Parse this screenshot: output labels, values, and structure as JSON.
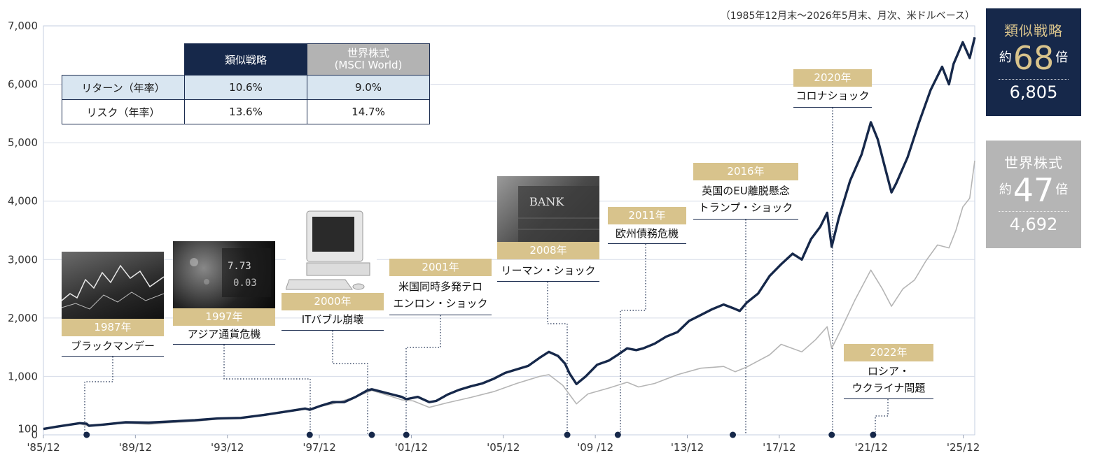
{
  "note": "（1985年12月末〜2026年5月末、月次、米ドルベース）",
  "summary_table": {
    "header": [
      "類似戦略",
      "世界株式",
      "(MSCI World)"
    ],
    "rows": [
      {
        "label": "リターン（年率）",
        "strategy": "10.6%",
        "world": "9.0%"
      },
      {
        "label": "リスク（年率）",
        "strategy": "13.6%",
        "world": "14.7%"
      }
    ]
  },
  "result_boxes": {
    "strategy": {
      "name": "類似戦略",
      "prefix": "約",
      "multiple": "68",
      "suffix": "倍",
      "value": "6,805",
      "color": "#16284a"
    },
    "world": {
      "name": "世界株式",
      "prefix": "約",
      "multiple": "47",
      "suffix": "倍",
      "value": "4,692",
      "color": "#b5b5b5"
    }
  },
  "events": [
    {
      "year": "1987年",
      "lines": [
        "ブラックマンデー"
      ]
    },
    {
      "year": "1997年",
      "lines": [
        "アジア通貨危機"
      ]
    },
    {
      "year": "2000年",
      "lines": [
        "ITバブル崩壊"
      ]
    },
    {
      "year": "2001年",
      "lines": [
        "米国同時多発テロ",
        "エンロン・ショック"
      ]
    },
    {
      "year": "2008年",
      "lines": [
        "リーマン・ショック"
      ]
    },
    {
      "year": "2011年",
      "lines": [
        "欧州債務危機"
      ]
    },
    {
      "year": "2016年",
      "lines": [
        "英国のEU離脱懸念",
        "トランプ・ショック"
      ]
    },
    {
      "year": "2020年",
      "lines": [
        "コロナショック"
      ]
    },
    {
      "year": "2022年",
      "lines": [
        "ロシア・",
        "ウクライナ問題"
      ]
    }
  ],
  "photos": [
    "stock-chart-photo",
    "market-board-photo",
    "retro-computer-photo",
    "bank-building-photo"
  ],
  "photo_text": "BANK",
  "chart_data": {
    "type": "line",
    "x_ticks": [
      "'85/12",
      "'89/12",
      "'93/12",
      "'97/12",
      "'01/12",
      "'05/12",
      "'09 /12",
      "'13/12",
      "'17/12",
      "'21/12",
      "'25/12"
    ],
    "y_ticks": [
      "0",
      "100",
      "1,000",
      "2,000",
      "3,000",
      "4,000",
      "5,000",
      "6,000",
      "7,000"
    ],
    "ylim": [
      0,
      7000
    ],
    "xlim": [
      1985.92,
      2026.42
    ],
    "grid": "horizontal",
    "event_markers": [
      1987.8,
      1997.5,
      2000.2,
      2001.7,
      2008.7,
      2010.9,
      2015.9,
      2020.2,
      2022.0
    ],
    "series": [
      {
        "name": "類似戦略",
        "color": "#16284a",
        "points": [
          [
            1985.92,
            100
          ],
          [
            1986.5,
            140
          ],
          [
            1987.5,
            200
          ],
          [
            1987.8,
            190
          ],
          [
            1987.9,
            155
          ],
          [
            1988.5,
            175
          ],
          [
            1989.5,
            215
          ],
          [
            1990.5,
            210
          ],
          [
            1991.5,
            230
          ],
          [
            1992.5,
            250
          ],
          [
            1993.5,
            280
          ],
          [
            1994.5,
            290
          ],
          [
            1995.5,
            340
          ],
          [
            1996.5,
            400
          ],
          [
            1997.3,
            450
          ],
          [
            1997.5,
            430
          ],
          [
            1998.0,
            500
          ],
          [
            1998.5,
            560
          ],
          [
            1999.0,
            560
          ],
          [
            1999.5,
            650
          ],
          [
            2000.0,
            760
          ],
          [
            2000.2,
            780
          ],
          [
            2000.6,
            740
          ],
          [
            2001.0,
            700
          ],
          [
            2001.5,
            650
          ],
          [
            2001.7,
            610
          ],
          [
            2002.2,
            650
          ],
          [
            2002.7,
            560
          ],
          [
            2003.0,
            580
          ],
          [
            2003.5,
            690
          ],
          [
            2004.0,
            770
          ],
          [
            2004.5,
            830
          ],
          [
            2005.0,
            880
          ],
          [
            2005.5,
            960
          ],
          [
            2006.0,
            1060
          ],
          [
            2006.5,
            1120
          ],
          [
            2007.0,
            1180
          ],
          [
            2007.5,
            1320
          ],
          [
            2007.9,
            1420
          ],
          [
            2008.3,
            1350
          ],
          [
            2008.6,
            1220
          ],
          [
            2008.8,
            1050
          ],
          [
            2009.1,
            870
          ],
          [
            2009.5,
            1000
          ],
          [
            2010.0,
            1200
          ],
          [
            2010.5,
            1270
          ],
          [
            2010.9,
            1370
          ],
          [
            2011.3,
            1480
          ],
          [
            2011.7,
            1450
          ],
          [
            2012.0,
            1480
          ],
          [
            2012.5,
            1560
          ],
          [
            2013.0,
            1680
          ],
          [
            2013.5,
            1760
          ],
          [
            2014.0,
            1950
          ],
          [
            2014.5,
            2050
          ],
          [
            2015.0,
            2150
          ],
          [
            2015.5,
            2230
          ],
          [
            2015.9,
            2170
          ],
          [
            2016.2,
            2120
          ],
          [
            2016.5,
            2260
          ],
          [
            2017.0,
            2420
          ],
          [
            2017.5,
            2720
          ],
          [
            2018.0,
            2920
          ],
          [
            2018.5,
            3100
          ],
          [
            2018.9,
            3000
          ],
          [
            2019.3,
            3350
          ],
          [
            2019.7,
            3560
          ],
          [
            2020.0,
            3800
          ],
          [
            2020.2,
            3220
          ],
          [
            2020.5,
            3700
          ],
          [
            2021.0,
            4350
          ],
          [
            2021.5,
            4800
          ],
          [
            2021.9,
            5350
          ],
          [
            2022.2,
            5060
          ],
          [
            2022.5,
            4600
          ],
          [
            2022.8,
            4150
          ],
          [
            2023.0,
            4300
          ],
          [
            2023.5,
            4750
          ],
          [
            2024.0,
            5350
          ],
          [
            2024.5,
            5900
          ],
          [
            2025.0,
            6300
          ],
          [
            2025.3,
            6000
          ],
          [
            2025.5,
            6350
          ],
          [
            2025.9,
            6720
          ],
          [
            2026.2,
            6450
          ],
          [
            2026.42,
            6805
          ]
        ]
      },
      {
        "name": "世界株式",
        "color": "#b5b5b5",
        "points": [
          [
            1985.92,
            100
          ],
          [
            1986.5,
            140
          ],
          [
            1987.5,
            190
          ],
          [
            1987.9,
            150
          ],
          [
            1988.5,
            170
          ],
          [
            1989.5,
            200
          ],
          [
            1990.5,
            180
          ],
          [
            1991.5,
            210
          ],
          [
            1992.5,
            230
          ],
          [
            1993.5,
            270
          ],
          [
            1994.5,
            290
          ],
          [
            1995.5,
            330
          ],
          [
            1996.5,
            390
          ],
          [
            1997.5,
            450
          ],
          [
            1998.5,
            530
          ],
          [
            1999.5,
            650
          ],
          [
            2000.2,
            760
          ],
          [
            2000.7,
            700
          ],
          [
            2001.5,
            600
          ],
          [
            2002.0,
            580
          ],
          [
            2002.7,
            470
          ],
          [
            2003.5,
            550
          ],
          [
            2004.5,
            640
          ],
          [
            2005.5,
            740
          ],
          [
            2006.5,
            880
          ],
          [
            2007.5,
            1000
          ],
          [
            2007.9,
            1030
          ],
          [
            2008.5,
            850
          ],
          [
            2009.1,
            530
          ],
          [
            2009.6,
            700
          ],
          [
            2010.5,
            800
          ],
          [
            2011.3,
            900
          ],
          [
            2011.8,
            820
          ],
          [
            2012.5,
            880
          ],
          [
            2013.5,
            1030
          ],
          [
            2014.5,
            1140
          ],
          [
            2015.5,
            1170
          ],
          [
            2016.0,
            1080
          ],
          [
            2016.5,
            1160
          ],
          [
            2017.5,
            1370
          ],
          [
            2018.0,
            1550
          ],
          [
            2018.9,
            1420
          ],
          [
            2019.5,
            1630
          ],
          [
            2020.0,
            1850
          ],
          [
            2020.2,
            1480
          ],
          [
            2020.6,
            1800
          ],
          [
            2021.2,
            2300
          ],
          [
            2021.9,
            2820
          ],
          [
            2022.4,
            2500
          ],
          [
            2022.8,
            2200
          ],
          [
            2023.3,
            2500
          ],
          [
            2023.8,
            2650
          ],
          [
            2024.3,
            2980
          ],
          [
            2024.8,
            3250
          ],
          [
            2025.3,
            3200
          ],
          [
            2025.6,
            3500
          ],
          [
            2025.9,
            3900
          ],
          [
            2026.2,
            4050
          ],
          [
            2026.42,
            4692
          ]
        ]
      }
    ]
  }
}
